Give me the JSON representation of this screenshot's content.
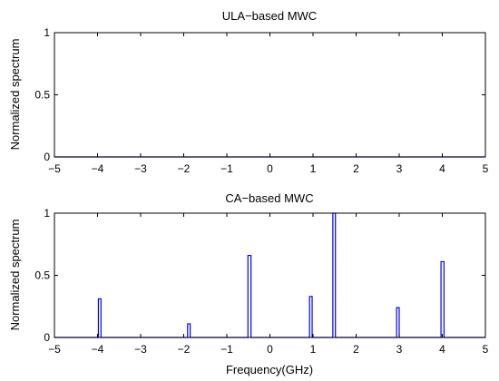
{
  "chart_data": [
    {
      "type": "line",
      "title": "ULA−based MWC",
      "xlabel": "",
      "ylabel": "Normalized spectrum",
      "xlim": [
        -5,
        5
      ],
      "ylim": [
        0,
        1
      ],
      "xticks": [
        -5,
        -4,
        -3,
        -2,
        -1,
        0,
        1,
        2,
        3,
        4,
        5
      ],
      "xtick_labels": [
        "−5",
        "−4",
        "−3",
        "−2",
        "−1",
        "0",
        "1",
        "2",
        "3",
        "4",
        "5"
      ],
      "yticks": [
        0,
        0.5,
        1
      ],
      "ytick_labels": [
        "0",
        "0.5",
        "1"
      ],
      "grid": false,
      "series": [
        {
          "color": "#0000ff",
          "x": [
            -5,
            5
          ],
          "y": [
            0,
            0
          ]
        }
      ]
    },
    {
      "type": "line",
      "title": "CA−based MWC",
      "xlabel": "Frequency(GHz)",
      "ylabel": "Normalized spectrum",
      "xlim": [
        -5,
        5
      ],
      "ylim": [
        0,
        1
      ],
      "xticks": [
        -5,
        -4,
        -3,
        -2,
        -1,
        0,
        1,
        2,
        3,
        4,
        5
      ],
      "xtick_labels": [
        "−5",
        "−4",
        "−3",
        "−2",
        "−1",
        "0",
        "1",
        "2",
        "3",
        "4",
        "5"
      ],
      "yticks": [
        0,
        0.5,
        1
      ],
      "ytick_labels": [
        "0",
        "0.5",
        "1"
      ],
      "grid": false,
      "series": [
        {
          "color": "#0000ff",
          "bands": [
            {
              "start": -3.98,
              "end": -3.92,
              "value": 0.31
            },
            {
              "start": -1.91,
              "end": -1.85,
              "value": 0.11
            },
            {
              "start": -0.51,
              "end": -0.44,
              "value": 0.66
            },
            {
              "start": 0.92,
              "end": 0.98,
              "value": 0.33
            },
            {
              "start": 1.46,
              "end": 1.52,
              "value": 1.0
            },
            {
              "start": 2.94,
              "end": 3.0,
              "value": 0.24
            },
            {
              "start": 3.97,
              "end": 4.04,
              "value": 0.61
            }
          ]
        }
      ]
    }
  ]
}
